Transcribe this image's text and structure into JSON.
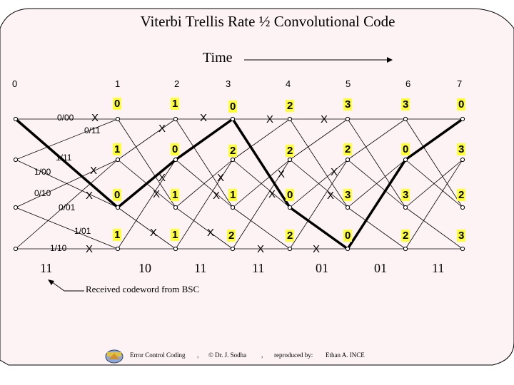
{
  "title": "Viterbi Trellis Rate ½ Convolutional Code",
  "time_label": "Time",
  "time_ticks": [
    "0",
    "1",
    "2",
    "3",
    "4",
    "5",
    "6",
    "7"
  ],
  "edge_labels": [
    "0/00",
    "0/11",
    "1/11",
    "1/00",
    "0/10",
    "0/01",
    "1/01",
    "1/10"
  ],
  "path_metrics": {
    "state00": [
      "0",
      "1",
      "0",
      "2",
      "3",
      "3",
      "0"
    ],
    "state01": [
      "1",
      "0",
      "2",
      "2",
      "2",
      "0",
      "3"
    ],
    "state10": [
      "0",
      "1",
      "1",
      "0",
      "3",
      "3",
      "2"
    ],
    "state11": [
      "1",
      "1",
      "2",
      "2",
      "0",
      "2",
      "3"
    ]
  },
  "x_mark": "X",
  "received_codeword": [
    "11",
    "10",
    "11",
    "11",
    "01",
    "01",
    "11"
  ],
  "received_caption": "Received codeword from BSC",
  "footer": {
    "left": "Error Control Coding",
    "sep1": ",",
    "middle": "© Dr. J. Sodha",
    "sep2": ",",
    "reproduced": "reproduced by:",
    "author": "Ethan A. INCE"
  },
  "colors": {
    "metric_bg": "#ffff33",
    "frame_bg": "#fdf3f5",
    "line": "#000000"
  },
  "icons": [
    "trellis-path-line",
    "decoder-logo-icon"
  ]
}
